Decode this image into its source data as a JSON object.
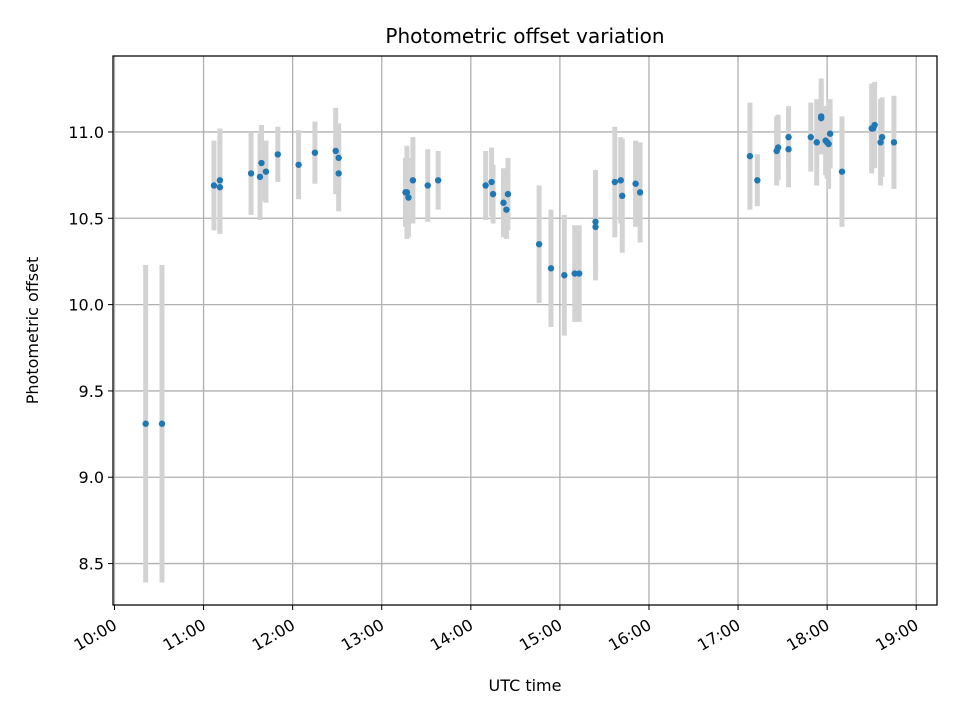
{
  "chart_data": {
    "type": "scatter",
    "title": "Photometric offset variation",
    "xlabel": "UTC time",
    "ylabel": "Photometric offset",
    "grid": true,
    "colors": {
      "point": "#1f77b4",
      "errorbar": "#d3d3d3",
      "grid": "#b0b0b0"
    },
    "x_tick_labels": [
      "10:00",
      "11:00",
      "12:00",
      "13:00",
      "14:00",
      "15:00",
      "16:00",
      "17:00",
      "18:00",
      "19:00"
    ],
    "y_tick_labels": [
      "8.5",
      "9.0",
      "9.5",
      "10.0",
      "10.5",
      "11.0"
    ],
    "xlim": [
      "09:59",
      "19:14"
    ],
    "ylim": [
      8.26,
      11.44
    ],
    "x_ticks": [
      "10:00",
      "11:00",
      "12:00",
      "13:00",
      "14:00",
      "15:00",
      "16:00",
      "17:00",
      "18:00",
      "19:00"
    ],
    "y_ticks": [
      8.5,
      9.0,
      9.5,
      10.0,
      10.5,
      11.0
    ],
    "series": [
      {
        "x": [
          "10:21",
          "10:32",
          "11:07",
          "11:11",
          "11:11",
          "11:32",
          "11:38",
          "11:39",
          "11:42",
          "11:50",
          "12:04",
          "12:15",
          "12:29",
          "12:31",
          "12:31",
          "13:16",
          "13:17",
          "13:18",
          "13:21",
          "13:31",
          "13:38",
          "14:10",
          "14:14",
          "14:15",
          "14:22",
          "14:24",
          "14:25",
          "14:46",
          "14:54",
          "15:03",
          "15:10",
          "15:13",
          "15:24",
          "15:24",
          "15:37",
          "15:41",
          "15:42",
          "15:51",
          "15:54",
          "17:08",
          "17:13",
          "17:26",
          "17:27",
          "17:34",
          "17:34",
          "17:49",
          "17:53",
          "17:56",
          "17:56",
          "17:59",
          "18:00",
          "18:01",
          "18:02",
          "18:10",
          "18:30",
          "18:31",
          "18:32",
          "18:36",
          "18:37",
          "18:45"
        ],
        "y": [
          9.31,
          9.31,
          10.69,
          10.68,
          10.72,
          10.76,
          10.74,
          10.82,
          10.77,
          10.87,
          10.81,
          10.88,
          10.89,
          10.76,
          10.85,
          10.65,
          10.65,
          10.62,
          10.72,
          10.69,
          10.72,
          10.69,
          10.71,
          10.64,
          10.59,
          10.55,
          10.64,
          10.35,
          10.21,
          10.17,
          10.18,
          10.18,
          10.45,
          10.48,
          10.71,
          10.72,
          10.63,
          10.7,
          10.65,
          10.86,
          10.72,
          10.89,
          10.91,
          10.9,
          10.97,
          10.97,
          10.94,
          11.09,
          11.08,
          10.95,
          10.94,
          10.93,
          10.99,
          10.77,
          11.02,
          11.02,
          11.04,
          10.94,
          10.97,
          10.94
        ],
        "yerr": [
          0.92,
          0.92,
          0.26,
          0.27,
          0.3,
          0.24,
          0.25,
          0.22,
          0.18,
          0.16,
          0.2,
          0.18,
          0.25,
          0.22,
          0.2,
          0.2,
          0.27,
          0.23,
          0.25,
          0.21,
          0.17,
          0.2,
          0.2,
          0.17,
          0.2,
          0.17,
          0.21,
          0.34,
          0.34,
          0.35,
          0.28,
          0.28,
          0.31,
          0.3,
          0.32,
          0.25,
          0.33,
          0.25,
          0.29,
          0.31,
          0.15,
          0.2,
          0.19,
          0.22,
          0.18,
          0.2,
          0.25,
          0.22,
          0.2,
          0.2,
          0.21,
          0.26,
          0.2,
          0.32,
          0.26,
          0.21,
          0.25,
          0.25,
          0.23,
          0.27
        ]
      }
    ]
  }
}
